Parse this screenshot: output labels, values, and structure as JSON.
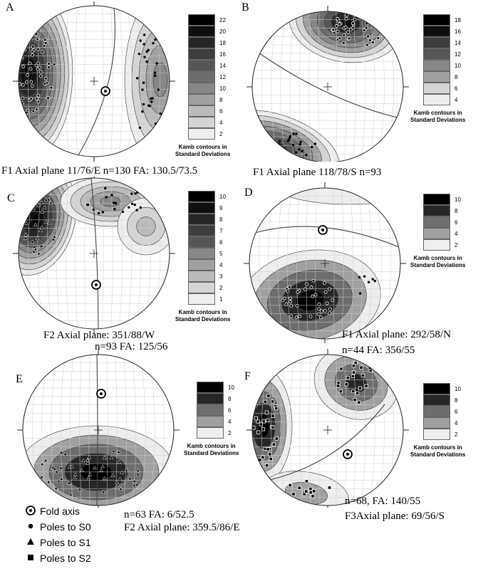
{
  "palette": [
    "#eeeeee",
    "#d4d4d4",
    "#bababa",
    "#a0a0a0",
    "#878787",
    "#6e6e6e",
    "#565656",
    "#3e3e3e",
    "#262626",
    "#0f0f0f",
    "#000000"
  ],
  "legend_title": [
    "Kamb contours in",
    "Standard Deviations"
  ],
  "panels": [
    {
      "label": "A",
      "caption": "F1 Axial plane 11/76/E n=130 FA: 130.5/73.5",
      "ticks": [
        "22",
        "20",
        "18",
        "16",
        "14",
        "12",
        "10",
        "8",
        "6",
        "4",
        "2"
      ],
      "levels": 12
    },
    {
      "label": "B",
      "caption": "F1 Axial plane 118/78/S n=93",
      "ticks": [
        "18",
        "16",
        "14",
        "12",
        "10",
        "8",
        "6",
        "4"
      ],
      "levels": 9
    },
    {
      "label": "C",
      "caption": "F2 Axial plane: 351/88/W",
      "caption2": "n=93 FA: 125/56",
      "ticks": [
        "10",
        "9",
        "8",
        "7",
        "6",
        "5",
        "4",
        "3",
        "2",
        "1"
      ],
      "levels": 10
    },
    {
      "label": "D",
      "caption": "F1 Axial plane: 292/58/N",
      "caption2": "n=44 FA: 356/55",
      "ticks": [
        "10",
        "8",
        "6",
        "4",
        "2"
      ],
      "levels": 5
    },
    {
      "label": "E",
      "caption": "n=63 FA: 6/52.5",
      "caption2": "F2 Axial plane: 359.5/86/E",
      "ticks": [
        "10",
        "8",
        "6",
        "4",
        "2"
      ],
      "levels": 5
    },
    {
      "label": "F",
      "caption": "n=68, FA: 140/55",
      "caption2": "F3Axial plane: 69/56/S",
      "ticks": [
        "10",
        "8",
        "6",
        "4",
        "2"
      ],
      "levels": 5
    }
  ],
  "key": [
    {
      "icon": "fold-axis-icon",
      "label": "Fold axis"
    },
    {
      "icon": "circle-icon",
      "label": "Poles to S0"
    },
    {
      "icon": "triangle-icon",
      "label": "Poles to S1"
    },
    {
      "icon": "square-icon",
      "label": "Poles to S2"
    }
  ]
}
